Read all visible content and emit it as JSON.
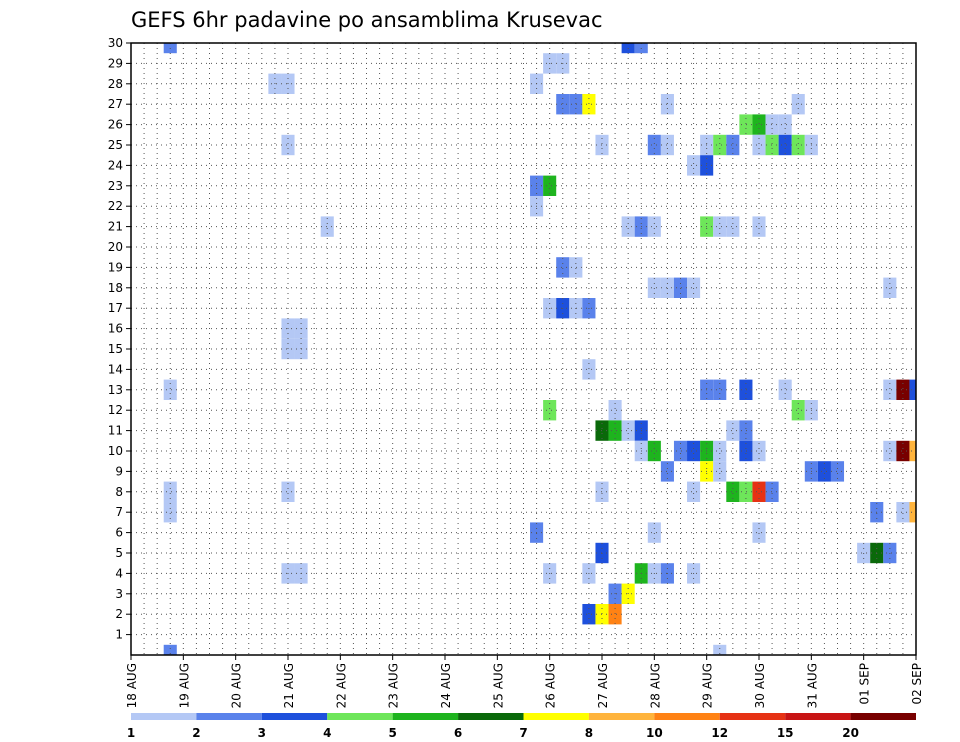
{
  "chart_data": {
    "type": "heatmap",
    "title": "GEFS 6hr padavine po ansamblima Krusevac",
    "xlabel": "",
    "ylabel": "",
    "y_range": [
      0,
      30
    ],
    "y_ticks": [
      1,
      2,
      3,
      4,
      5,
      6,
      7,
      8,
      9,
      10,
      11,
      12,
      13,
      14,
      15,
      16,
      17,
      18,
      19,
      20,
      21,
      22,
      23,
      24,
      25,
      26,
      27,
      28,
      29,
      30
    ],
    "x_range": [
      "18 AUG 00Z",
      "02 SEP 00Z"
    ],
    "x_ticks": [
      "18 AUG",
      "19 AUG",
      "20 AUG",
      "21 AUG",
      "22 AUG",
      "23 AUG",
      "24 AUG",
      "25 AUG",
      "26 AUG",
      "27 AUG",
      "28 AUG",
      "29 AUG",
      "30 AUG",
      "31 AUG",
      "01 SEP",
      "02 SEP"
    ],
    "grid": true,
    "time_step_hours": 6,
    "legend": {
      "placement": "bottom",
      "labels": [
        "1",
        "2",
        "3",
        "4",
        "5",
        "6",
        "7",
        "8",
        "10",
        "12",
        "15",
        "20"
      ],
      "colors": [
        "#b4c8f5",
        "#5a82eb",
        "#1e50dc",
        "#6ee65a",
        "#1eb41e",
        "#0a690a",
        "#ffff00",
        "#ffb43c",
        "#ff8214",
        "#e63214",
        "#c81414",
        "#780000"
      ]
    },
    "cells": [
      {
        "member": 30,
        "time": "18 AUG 18Z",
        "color": "#5a82eb"
      },
      {
        "member": 30,
        "time": "27 AUG 12Z",
        "color": "#1e50dc"
      },
      {
        "member": 30,
        "time": "27 AUG 18Z",
        "color": "#5a82eb"
      },
      {
        "member": 29,
        "time": "26 AUG 00Z",
        "color": "#b4c8f5"
      },
      {
        "member": 29,
        "time": "26 AUG 06Z",
        "color": "#b4c8f5"
      },
      {
        "member": 28,
        "time": "20 AUG 18Z",
        "color": "#b4c8f5"
      },
      {
        "member": 28,
        "time": "21 AUG 00Z",
        "color": "#b4c8f5"
      },
      {
        "member": 28,
        "time": "25 AUG 18Z",
        "color": "#b4c8f5"
      },
      {
        "member": 27,
        "time": "26 AUG 06Z",
        "color": "#5a82eb"
      },
      {
        "member": 27,
        "time": "26 AUG 12Z",
        "color": "#5a82eb"
      },
      {
        "member": 27,
        "time": "26 AUG 18Z",
        "color": "#ffff00"
      },
      {
        "member": 27,
        "time": "28 AUG 06Z",
        "color": "#b4c8f5"
      },
      {
        "member": 27,
        "time": "30 AUG 18Z",
        "color": "#b4c8f5"
      },
      {
        "member": 26,
        "time": "29 AUG 18Z",
        "color": "#6ee65a"
      },
      {
        "member": 26,
        "time": "30 AUG 00Z",
        "color": "#1eb41e"
      },
      {
        "member": 26,
        "time": "30 AUG 06Z",
        "color": "#b4c8f5"
      },
      {
        "member": 26,
        "time": "30 AUG 12Z",
        "color": "#b4c8f5"
      },
      {
        "member": 25,
        "time": "21 AUG 00Z",
        "color": "#b4c8f5"
      },
      {
        "member": 25,
        "time": "27 AUG 00Z",
        "color": "#b4c8f5"
      },
      {
        "member": 25,
        "time": "28 AUG 00Z",
        "color": "#5a82eb"
      },
      {
        "member": 25,
        "time": "28 AUG 06Z",
        "color": "#b4c8f5"
      },
      {
        "member": 25,
        "time": "29 AUG 00Z",
        "color": "#b4c8f5"
      },
      {
        "member": 25,
        "time": "29 AUG 06Z",
        "color": "#6ee65a"
      },
      {
        "member": 25,
        "time": "29 AUG 12Z",
        "color": "#5a82eb"
      },
      {
        "member": 25,
        "time": "30 AUG 00Z",
        "color": "#b4c8f5"
      },
      {
        "member": 25,
        "time": "30 AUG 06Z",
        "color": "#6ee65a"
      },
      {
        "member": 25,
        "time": "30 AUG 12Z",
        "color": "#1e50dc"
      },
      {
        "member": 25,
        "time": "30 AUG 18Z",
        "color": "#6ee65a"
      },
      {
        "member": 25,
        "time": "31 AUG 00Z",
        "color": "#b4c8f5"
      },
      {
        "member": 24,
        "time": "28 AUG 18Z",
        "color": "#b4c8f5"
      },
      {
        "member": 24,
        "time": "29 AUG 00Z",
        "color": "#1e50dc"
      },
      {
        "member": 23,
        "time": "25 AUG 18Z",
        "color": "#5a82eb"
      },
      {
        "member": 23,
        "time": "26 AUG 00Z",
        "color": "#1eb41e"
      },
      {
        "member": 22,
        "time": "25 AUG 18Z",
        "color": "#b4c8f5"
      },
      {
        "member": 21,
        "time": "21 AUG 18Z",
        "color": "#b4c8f5"
      },
      {
        "member": 21,
        "time": "27 AUG 12Z",
        "color": "#b4c8f5"
      },
      {
        "member": 21,
        "time": "27 AUG 18Z",
        "color": "#5a82eb"
      },
      {
        "member": 21,
        "time": "28 AUG 00Z",
        "color": "#b4c8f5"
      },
      {
        "member": 21,
        "time": "29 AUG 00Z",
        "color": "#6ee65a"
      },
      {
        "member": 21,
        "time": "29 AUG 06Z",
        "color": "#b4c8f5"
      },
      {
        "member": 21,
        "time": "29 AUG 12Z",
        "color": "#b4c8f5"
      },
      {
        "member": 21,
        "time": "30 AUG 00Z",
        "color": "#b4c8f5"
      },
      {
        "member": 19,
        "time": "26 AUG 06Z",
        "color": "#5a82eb"
      },
      {
        "member": 19,
        "time": "26 AUG 12Z",
        "color": "#b4c8f5"
      },
      {
        "member": 18,
        "time": "28 AUG 00Z",
        "color": "#b4c8f5"
      },
      {
        "member": 18,
        "time": "28 AUG 06Z",
        "color": "#b4c8f5"
      },
      {
        "member": 18,
        "time": "28 AUG 12Z",
        "color": "#5a82eb"
      },
      {
        "member": 18,
        "time": "28 AUG 18Z",
        "color": "#b4c8f5"
      },
      {
        "member": 18,
        "time": "01 SEP 12Z",
        "color": "#b4c8f5"
      },
      {
        "member": 17,
        "time": "26 AUG 00Z",
        "color": "#b4c8f5"
      },
      {
        "member": 17,
        "time": "26 AUG 06Z",
        "color": "#1e50dc"
      },
      {
        "member": 17,
        "time": "26 AUG 12Z",
        "color": "#b4c8f5"
      },
      {
        "member": 17,
        "time": "26 AUG 18Z",
        "color": "#5a82eb"
      },
      {
        "member": 16,
        "time": "21 AUG 00Z",
        "color": "#b4c8f5"
      },
      {
        "member": 16,
        "time": "21 AUG 06Z",
        "color": "#b4c8f5"
      },
      {
        "member": 15,
        "time": "21 AUG 00Z",
        "color": "#b4c8f5"
      },
      {
        "member": 15,
        "time": "21 AUG 06Z",
        "color": "#b4c8f5"
      },
      {
        "member": 14,
        "time": "26 AUG 18Z",
        "color": "#b4c8f5"
      },
      {
        "member": 13,
        "time": "18 AUG 18Z",
        "color": "#b4c8f5"
      },
      {
        "member": 13,
        "time": "29 AUG 00Z",
        "color": "#5a82eb"
      },
      {
        "member": 13,
        "time": "29 AUG 06Z",
        "color": "#5a82eb"
      },
      {
        "member": 13,
        "time": "29 AUG 18Z",
        "color": "#1e50dc"
      },
      {
        "member": 13,
        "time": "30 AUG 12Z",
        "color": "#b4c8f5"
      },
      {
        "member": 13,
        "time": "01 SEP 12Z",
        "color": "#b4c8f5"
      },
      {
        "member": 13,
        "time": "01 SEP 18Z",
        "color": "#780000"
      },
      {
        "member": 13,
        "time": "02 SEP 00Z",
        "color": "#1e50dc"
      },
      {
        "member": 12,
        "time": "26 AUG 00Z",
        "color": "#6ee65a"
      },
      {
        "member": 12,
        "time": "27 AUG 06Z",
        "color": "#b4c8f5"
      },
      {
        "member": 12,
        "time": "30 AUG 18Z",
        "color": "#6ee65a"
      },
      {
        "member": 12,
        "time": "31 AUG 00Z",
        "color": "#b4c8f5"
      },
      {
        "member": 11,
        "time": "27 AUG 00Z",
        "color": "#0a690a"
      },
      {
        "member": 11,
        "time": "27 AUG 06Z",
        "color": "#1eb41e"
      },
      {
        "member": 11,
        "time": "27 AUG 12Z",
        "color": "#b4c8f5"
      },
      {
        "member": 11,
        "time": "27 AUG 18Z",
        "color": "#1e50dc"
      },
      {
        "member": 11,
        "time": "29 AUG 12Z",
        "color": "#b4c8f5"
      },
      {
        "member": 11,
        "time": "29 AUG 18Z",
        "color": "#5a82eb"
      },
      {
        "member": 10,
        "time": "27 AUG 18Z",
        "color": "#b4c8f5"
      },
      {
        "member": 10,
        "time": "28 AUG 00Z",
        "color": "#1eb41e"
      },
      {
        "member": 10,
        "time": "28 AUG 12Z",
        "color": "#5a82eb"
      },
      {
        "member": 10,
        "time": "28 AUG 18Z",
        "color": "#1e50dc"
      },
      {
        "member": 10,
        "time": "29 AUG 00Z",
        "color": "#1eb41e"
      },
      {
        "member": 10,
        "time": "29 AUG 06Z",
        "color": "#b4c8f5"
      },
      {
        "member": 10,
        "time": "29 AUG 18Z",
        "color": "#1e50dc"
      },
      {
        "member": 10,
        "time": "30 AUG 00Z",
        "color": "#b4c8f5"
      },
      {
        "member": 10,
        "time": "01 SEP 12Z",
        "color": "#b4c8f5"
      },
      {
        "member": 10,
        "time": "01 SEP 18Z",
        "color": "#780000"
      },
      {
        "member": 10,
        "time": "02 SEP 00Z",
        "color": "#ffb43c"
      },
      {
        "member": 9,
        "time": "28 AUG 06Z",
        "color": "#5a82eb"
      },
      {
        "member": 9,
        "time": "29 AUG 00Z",
        "color": "#ffff00"
      },
      {
        "member": 9,
        "time": "29 AUG 06Z",
        "color": "#b4c8f5"
      },
      {
        "member": 9,
        "time": "31 AUG 00Z",
        "color": "#5a82eb"
      },
      {
        "member": 9,
        "time": "31 AUG 06Z",
        "color": "#1e50dc"
      },
      {
        "member": 9,
        "time": "31 AUG 12Z",
        "color": "#5a82eb"
      },
      {
        "member": 8,
        "time": "18 AUG 18Z",
        "color": "#b4c8f5"
      },
      {
        "member": 8,
        "time": "21 AUG 00Z",
        "color": "#b4c8f5"
      },
      {
        "member": 8,
        "time": "27 AUG 00Z",
        "color": "#b4c8f5"
      },
      {
        "member": 8,
        "time": "28 AUG 18Z",
        "color": "#b4c8f5"
      },
      {
        "member": 8,
        "time": "29 AUG 12Z",
        "color": "#1eb41e"
      },
      {
        "member": 8,
        "time": "29 AUG 18Z",
        "color": "#6ee65a"
      },
      {
        "member": 8,
        "time": "30 AUG 00Z",
        "color": "#e63214"
      },
      {
        "member": 8,
        "time": "30 AUG 06Z",
        "color": "#5a82eb"
      },
      {
        "member": 7,
        "time": "18 AUG 18Z",
        "color": "#b4c8f5"
      },
      {
        "member": 7,
        "time": "01 SEP 06Z",
        "color": "#5a82eb"
      },
      {
        "member": 7,
        "time": "01 SEP 18Z",
        "color": "#b4c8f5"
      },
      {
        "member": 7,
        "time": "02 SEP 00Z",
        "color": "#ffb43c"
      },
      {
        "member": 6,
        "time": "25 AUG 18Z",
        "color": "#5a82eb"
      },
      {
        "member": 6,
        "time": "28 AUG 00Z",
        "color": "#b4c8f5"
      },
      {
        "member": 6,
        "time": "30 AUG 00Z",
        "color": "#b4c8f5"
      },
      {
        "member": 5,
        "time": "27 AUG 00Z",
        "color": "#1e50dc"
      },
      {
        "member": 5,
        "time": "01 SEP 00Z",
        "color": "#b4c8f5"
      },
      {
        "member": 5,
        "time": "01 SEP 06Z",
        "color": "#0a690a"
      },
      {
        "member": 5,
        "time": "01 SEP 12Z",
        "color": "#5a82eb"
      },
      {
        "member": 4,
        "time": "21 AUG 00Z",
        "color": "#b4c8f5"
      },
      {
        "member": 4,
        "time": "21 AUG 06Z",
        "color": "#b4c8f5"
      },
      {
        "member": 4,
        "time": "26 AUG 00Z",
        "color": "#b4c8f5"
      },
      {
        "member": 4,
        "time": "26 AUG 18Z",
        "color": "#b4c8f5"
      },
      {
        "member": 4,
        "time": "27 AUG 18Z",
        "color": "#1eb41e"
      },
      {
        "member": 4,
        "time": "28 AUG 00Z",
        "color": "#b4c8f5"
      },
      {
        "member": 4,
        "time": "28 AUG 06Z",
        "color": "#5a82eb"
      },
      {
        "member": 4,
        "time": "28 AUG 18Z",
        "color": "#b4c8f5"
      },
      {
        "member": 3,
        "time": "27 AUG 06Z",
        "color": "#5a82eb"
      },
      {
        "member": 3,
        "time": "27 AUG 12Z",
        "color": "#ffff00"
      },
      {
        "member": 2,
        "time": "26 AUG 18Z",
        "color": "#1e50dc"
      },
      {
        "member": 2,
        "time": "27 AUG 00Z",
        "color": "#ffff00"
      },
      {
        "member": 2,
        "time": "27 AUG 06Z",
        "color": "#ff8214"
      },
      {
        "member": 0,
        "time": "18 AUG 18Z",
        "color": "#5a82eb"
      },
      {
        "member": 0,
        "time": "29 AUG 06Z",
        "color": "#b4c8f5"
      }
    ]
  }
}
